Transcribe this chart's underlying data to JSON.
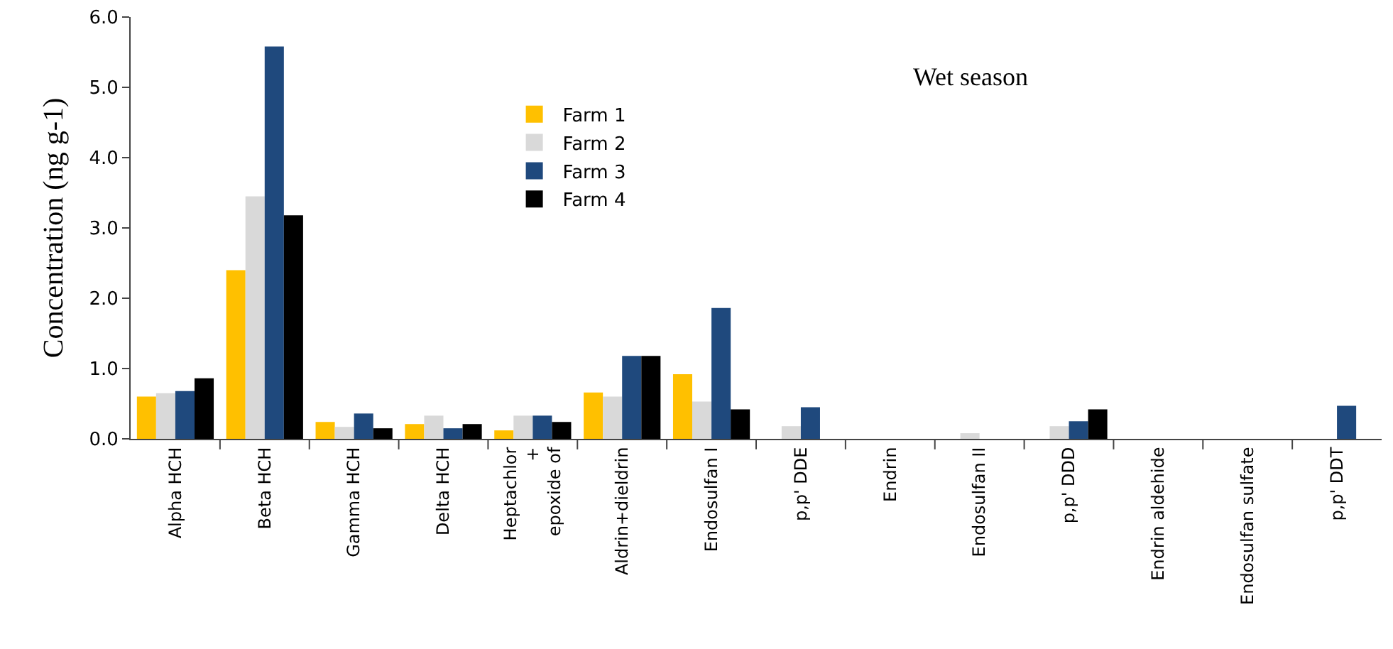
{
  "chart_data": {
    "type": "bar",
    "title": "Wet season",
    "ylabel": "Concentration (ng g-1)",
    "categories": [
      "Alpha HCH",
      "Beta HCH",
      "Gamma HCH",
      "Delta HCH",
      "Heptachlor\n+\nepoxide of",
      "Aldrin+dieldrin",
      "Endosulfan I",
      "p,p' DDE",
      "Endrin",
      "Endosulfan II",
      "p,p' DDD",
      "Endrin aldehide",
      "Endosulfan sulfate",
      "p,p' DDT"
    ],
    "series": [
      {
        "name": "Farm 1",
        "color": "#ffc000",
        "values": [
          0.6,
          2.4,
          0.24,
          0.21,
          0.12,
          0.66,
          0.92,
          0,
          0,
          0,
          0,
          0,
          0,
          0
        ]
      },
      {
        "name": "Farm 2",
        "color": "#d9d9d9",
        "values": [
          0.65,
          3.45,
          0.17,
          0.33,
          0.33,
          0.6,
          0.53,
          0.18,
          0,
          0.08,
          0.18,
          0,
          0,
          0
        ]
      },
      {
        "name": "Farm 3",
        "color": "#1f497d",
        "values": [
          0.68,
          5.58,
          0.36,
          0.15,
          0.33,
          1.18,
          1.86,
          0.45,
          0,
          0,
          0.25,
          0,
          0,
          0.47
        ]
      },
      {
        "name": "Farm 4",
        "color": "#000000",
        "values": [
          0.86,
          3.18,
          0.15,
          0.21,
          0.24,
          1.18,
          0.42,
          0,
          0,
          0,
          0.42,
          0,
          0,
          0
        ]
      }
    ],
    "ylim": [
      0,
      6
    ],
    "yticks": [
      {
        "value": 0,
        "label": "0.0"
      },
      {
        "value": 1,
        "label": "1.0"
      },
      {
        "value": 2,
        "label": "2.0"
      },
      {
        "value": 3,
        "label": "3.0"
      },
      {
        "value": 4,
        "label": "4.0"
      },
      {
        "value": 5,
        "label": "5.0"
      },
      {
        "value": 6,
        "label": "6.0"
      }
    ],
    "grid": false,
    "legend": "top"
  }
}
